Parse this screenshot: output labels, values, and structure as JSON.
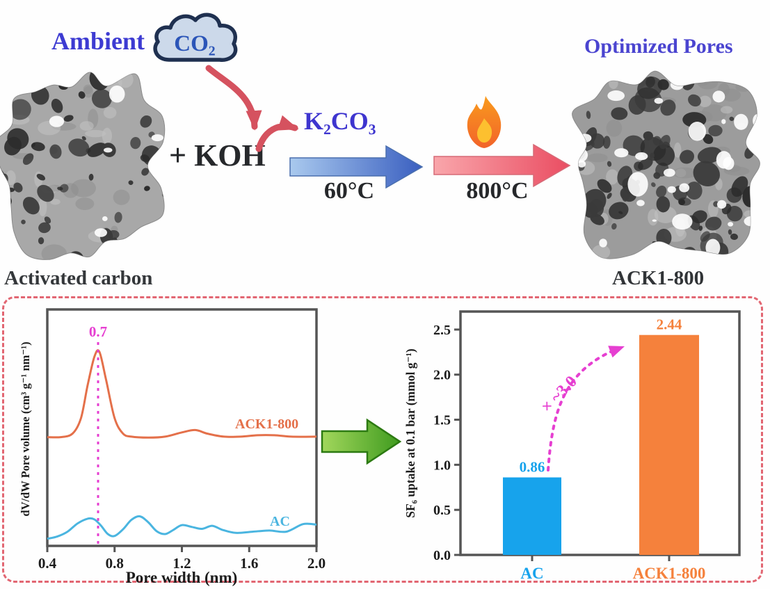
{
  "scheme": {
    "ambient": "Ambient",
    "co2": "CO₂",
    "plus_koh": "+ KOH",
    "k2co3": "K₂CO₃",
    "temp_low": "60°C",
    "temp_high": "800°C",
    "optimized_pores": "Optimized Pores",
    "activated_carbon": "Activated carbon",
    "ack1_800": "ACK1-800"
  },
  "icons": {
    "co2-cloud-icon": "cloud-outline",
    "flame-icon": "flame",
    "low-temp-arrow-icon": "block-arrow-right-blue",
    "high-temp-arrow-icon": "block-arrow-right-pink",
    "result-arrow-icon": "block-arrow-right-green",
    "co2-to-koh-arrow-icon": "curved-arrow-red",
    "koh-to-k2co3-arrow-icon": "curved-arrow-red",
    "uptake-increase-arrow-icon": "dashed-curved-arrow-magenta"
  },
  "colors": {
    "title_blue": "#3d3bd2",
    "arrow_blue": "#3a63c8",
    "arrow_pink": "#ec5266",
    "arrow_green": "#3f9b1f",
    "curved_arrow_red": "#d5525f",
    "magenta_annotation": "#e63fd1",
    "panel_border": "#e26672",
    "bar_blue": "#17a3ec",
    "bar_orange": "#f5813c",
    "curve_orange": "#e4704a",
    "curve_blue": "#4ab5e0"
  },
  "chart_data": [
    {
      "type": "line",
      "title": "",
      "xlabel": "Pore width (nm)",
      "ylabel": "dV/dW Pore volume (cm³ g⁻¹ nm⁻¹)",
      "xlim": [
        0.4,
        2.0
      ],
      "ylim": [
        0,
        1
      ],
      "xticks": [
        "0.4",
        "0.8",
        "1.2",
        "1.6",
        "2.0"
      ],
      "grid": false,
      "legend_position": "inline-right",
      "annotation": {
        "text": "0.7",
        "x": 0.7
      },
      "series": [
        {
          "name": "ACK1-800",
          "color": "#e4704a",
          "points": [
            [
              0.4,
              0.46
            ],
            [
              0.48,
              0.46
            ],
            [
              0.55,
              0.475
            ],
            [
              0.6,
              0.54
            ],
            [
              0.64,
              0.68
            ],
            [
              0.68,
              0.8
            ],
            [
              0.71,
              0.82
            ],
            [
              0.75,
              0.7
            ],
            [
              0.8,
              0.54
            ],
            [
              0.85,
              0.475
            ],
            [
              0.9,
              0.462
            ],
            [
              1.0,
              0.458
            ],
            [
              1.1,
              0.462
            ],
            [
              1.2,
              0.48
            ],
            [
              1.28,
              0.49
            ],
            [
              1.35,
              0.475
            ],
            [
              1.45,
              0.462
            ],
            [
              1.55,
              0.462
            ],
            [
              1.65,
              0.468
            ],
            [
              1.75,
              0.468
            ],
            [
              1.85,
              0.462
            ],
            [
              2.0,
              0.462
            ]
          ]
        },
        {
          "name": "AC",
          "color": "#4ab5e0",
          "points": [
            [
              0.4,
              0.03
            ],
            [
              0.46,
              0.04
            ],
            [
              0.52,
              0.06
            ],
            [
              0.58,
              0.095
            ],
            [
              0.64,
              0.115
            ],
            [
              0.68,
              0.112
            ],
            [
              0.72,
              0.085
            ],
            [
              0.76,
              0.05
            ],
            [
              0.8,
              0.042
            ],
            [
              0.85,
              0.07
            ],
            [
              0.9,
              0.11
            ],
            [
              0.95,
              0.125
            ],
            [
              1.0,
              0.1
            ],
            [
              1.05,
              0.062
            ],
            [
              1.1,
              0.05
            ],
            [
              1.15,
              0.068
            ],
            [
              1.2,
              0.088
            ],
            [
              1.26,
              0.08
            ],
            [
              1.32,
              0.072
            ],
            [
              1.38,
              0.085
            ],
            [
              1.44,
              0.068
            ],
            [
              1.52,
              0.055
            ],
            [
              1.62,
              0.06
            ],
            [
              1.72,
              0.065
            ],
            [
              1.82,
              0.06
            ],
            [
              1.92,
              0.092
            ],
            [
              2.0,
              0.09
            ]
          ]
        }
      ]
    },
    {
      "type": "bar",
      "title": "",
      "xlabel": "",
      "ylabel": "SF₆ uptake at 0.1 bar (mmol g⁻¹)",
      "categories": [
        "AC",
        "ACK1-800"
      ],
      "values": [
        0.86,
        2.44
      ],
      "value_labels": [
        "0.86",
        "2.44"
      ],
      "bar_colors": [
        "#17a3ec",
        "#f5813c"
      ],
      "ylim": [
        0,
        2.7
      ],
      "yticks": [
        0.0,
        0.5,
        1.0,
        1.5,
        2.0,
        2.5
      ],
      "grid": false,
      "annotation": "× ~3.0"
    }
  ]
}
